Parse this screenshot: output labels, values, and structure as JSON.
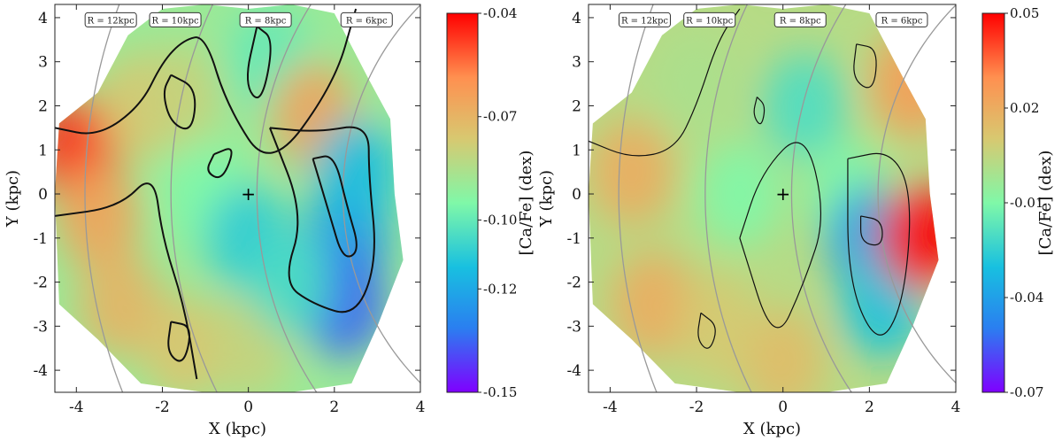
{
  "chart_data": [
    {
      "type": "heatmap",
      "xlabel": "X (kpc)",
      "ylabel": "Y (kpc)",
      "xlim": [
        -4.5,
        4
      ],
      "ylim": [
        -4.5,
        4.3
      ],
      "xticks": [
        "-4",
        "-2",
        "0",
        "2",
        "4"
      ],
      "yticks": [
        "-4",
        "-3",
        "-2",
        "-1",
        "0",
        "1",
        "2",
        "3",
        "4"
      ],
      "colorbar": {
        "label": "[Ca/Fe] (dex)",
        "range": [
          -0.15,
          -0.04
        ],
        "ticks": [
          "-0.04",
          "-0.07",
          "-0.10",
          "-0.12",
          "-0.15"
        ],
        "tick_values": [
          -0.04,
          -0.07,
          -0.1,
          -0.12,
          -0.15
        ],
        "colormap": "rainbow"
      },
      "radius_labels": [
        "R = 12kpc",
        "R = 10kpc",
        "R = 8kpc",
        "R = 6kpc"
      ],
      "radius_values": [
        12,
        10,
        8,
        6
      ],
      "marker": {
        "symbol": "+",
        "x": 0,
        "y": 0
      },
      "regions": [
        {
          "x": -4.0,
          "y": 1.0,
          "value": -0.045
        },
        {
          "x": -3.5,
          "y": -0.5,
          "value": -0.065
        },
        {
          "x": -3.0,
          "y": -2.5,
          "value": -0.07
        },
        {
          "x": -2.5,
          "y": 2.0,
          "value": -0.075
        },
        {
          "x": -1.6,
          "y": 2.2,
          "value": -0.08
        },
        {
          "x": -1.5,
          "y": -3.5,
          "value": -0.075
        },
        {
          "x": -1.0,
          "y": 0.0,
          "value": -0.095
        },
        {
          "x": 0.0,
          "y": -1.0,
          "value": -0.11
        },
        {
          "x": 0.5,
          "y": 3.0,
          "value": -0.1
        },
        {
          "x": 1.5,
          "y": 1.8,
          "value": -0.065
        },
        {
          "x": 0.0,
          "y": -3.5,
          "value": -0.08
        },
        {
          "x": 2.3,
          "y": -1.0,
          "value": -0.125
        },
        {
          "x": 2.2,
          "y": -2.5,
          "value": -0.135
        },
        {
          "x": 2.5,
          "y": 0.5,
          "value": -0.115
        },
        {
          "x": 1.0,
          "y": -2.0,
          "value": -0.105
        }
      ]
    },
    {
      "type": "heatmap",
      "xlabel": "X (kpc)",
      "ylabel": "Y (kpc)",
      "xlim": [
        -4.5,
        4
      ],
      "ylim": [
        -4.5,
        4.3
      ],
      "xticks": [
        "-4",
        "-2",
        "0",
        "2",
        "4"
      ],
      "yticks": [
        "-4",
        "-3",
        "-2",
        "-1",
        "0",
        "1",
        "2",
        "3",
        "4"
      ],
      "colorbar": {
        "label": "[Ca/Fe] (dex)",
        "range": [
          -0.07,
          0.05
        ],
        "ticks": [
          "0.05",
          "0.02",
          "-0.01",
          "-0.04",
          "-0.07"
        ],
        "tick_values": [
          0.05,
          0.02,
          -0.01,
          -0.04,
          -0.07
        ],
        "colormap": "rainbow"
      },
      "radius_labels": [
        "R = 12kpc",
        "R = 10kpc",
        "R = 8kpc",
        "R = 6kpc"
      ],
      "radius_values": [
        12,
        10,
        8,
        6
      ],
      "marker": {
        "symbol": "+",
        "x": 0,
        "y": 0
      },
      "regions": [
        {
          "x": -3.5,
          "y": 0.5,
          "value": 0.02
        },
        {
          "x": -3.0,
          "y": -2.5,
          "value": 0.02
        },
        {
          "x": -2.0,
          "y": 2.5,
          "value": 0.0
        },
        {
          "x": -1.0,
          "y": 0.0,
          "value": -0.01
        },
        {
          "x": 0.0,
          "y": -3.8,
          "value": 0.015
        },
        {
          "x": 0.5,
          "y": 2.0,
          "value": -0.02
        },
        {
          "x": 1.5,
          "y": 0.0,
          "value": -0.01
        },
        {
          "x": 2.0,
          "y": -1.0,
          "value": -0.04
        },
        {
          "x": 2.3,
          "y": -2.5,
          "value": -0.03
        },
        {
          "x": 3.2,
          "y": -1.0,
          "value": 0.05
        },
        {
          "x": 3.0,
          "y": 2.5,
          "value": 0.025
        },
        {
          "x": -1.5,
          "y": -3.0,
          "value": 0.01
        }
      ]
    }
  ]
}
